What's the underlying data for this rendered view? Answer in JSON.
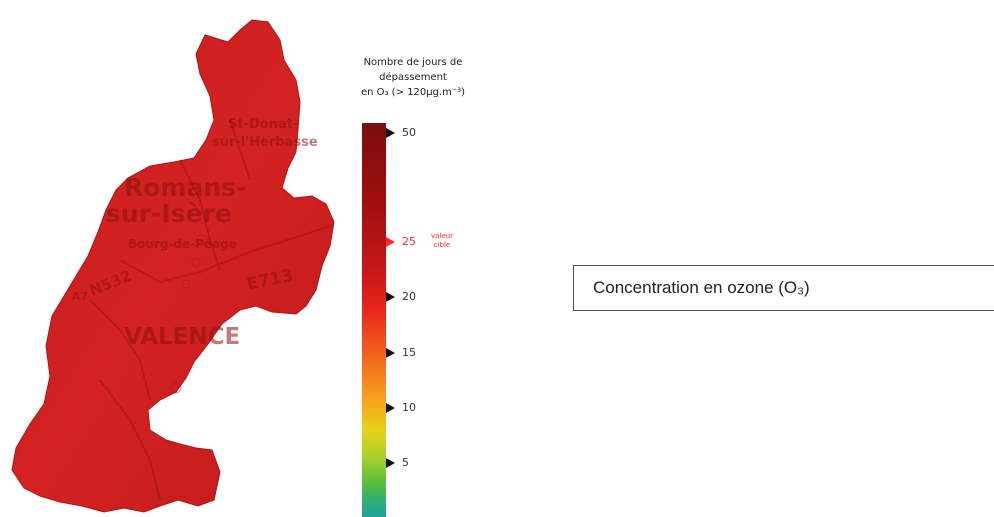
{
  "legend": {
    "title_line1": "Nombre de jours de",
    "title_line2": "dépassement",
    "title_line3": "en O₃  (> 120µg.m⁻³)",
    "ticks": [
      {
        "value": "50"
      },
      {
        "value": "25",
        "highlight": true
      },
      {
        "value": "20"
      },
      {
        "value": "15"
      },
      {
        "value": "10"
      },
      {
        "value": "5"
      }
    ],
    "target_note_line1": "valeur",
    "target_note_line2": "cible",
    "colors": {
      "max": "#7a0e0e",
      "target": "#e8241c",
      "mid": "#f7a11e",
      "low": "#21a39a"
    }
  },
  "map": {
    "fill_color": "#d42222",
    "towns": [
      "Romans-",
      "sur-Isère",
      "VALENCE",
      "Bourg-de-Péage",
      "St-Donat-",
      "sur-l'Herbasse"
    ],
    "roads": [
      "A7",
      "N532",
      "E713"
    ]
  },
  "caption": {
    "text": "Concentration en ozone (O₃)"
  }
}
